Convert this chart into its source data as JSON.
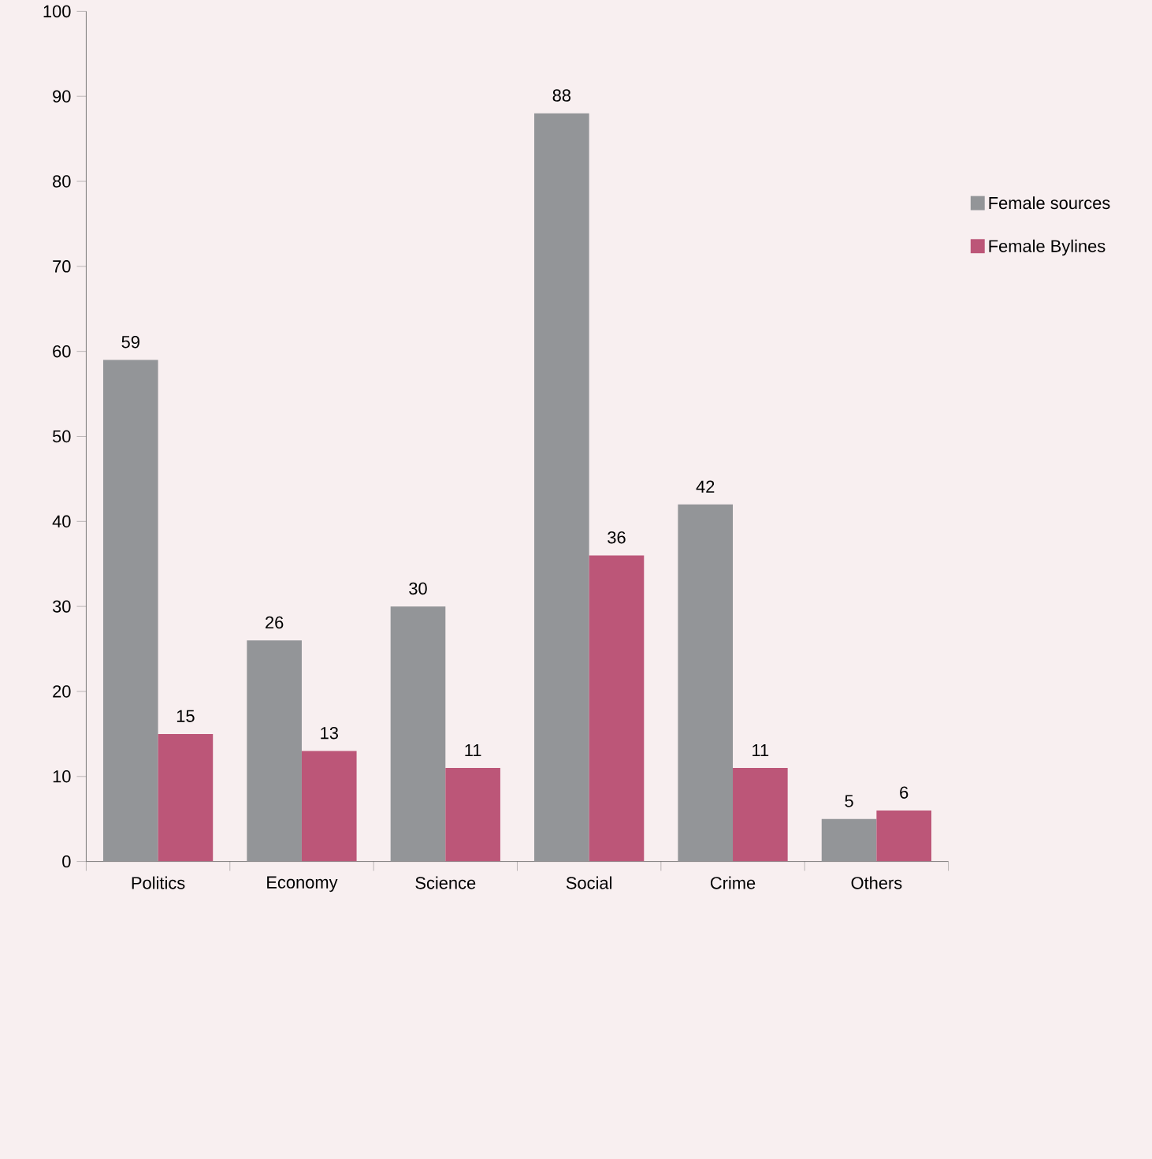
{
  "chart_data": {
    "type": "bar",
    "categories": [
      "Politics",
      "Economy",
      "Science",
      "Social",
      "Crime",
      "Others"
    ],
    "series": [
      {
        "name": "Female sources",
        "color": "#939598",
        "values": [
          59,
          26,
          30,
          88,
          42,
          5
        ]
      },
      {
        "name": "Female Bylines",
        "color": "#bc5678",
        "values": [
          15,
          13,
          11,
          36,
          11,
          6
        ]
      }
    ],
    "ylim": [
      0,
      100
    ],
    "yticks": [
      0,
      10,
      20,
      30,
      40,
      50,
      60,
      70,
      80,
      90,
      100
    ],
    "data_labels": true,
    "grid": false,
    "legend": "right"
  }
}
